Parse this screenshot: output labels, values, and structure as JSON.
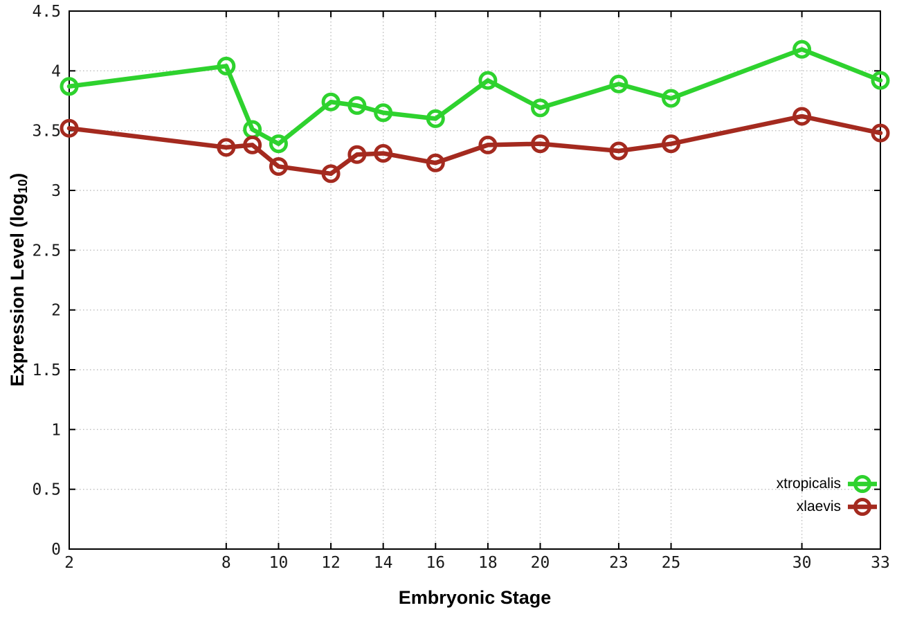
{
  "chart_data": {
    "type": "line",
    "xlabel": "Embryonic Stage",
    "ylabel": "Expression Level (log10)",
    "ylabel_parts": {
      "pre": "Expression Level (log",
      "sub": "10",
      "post": ")"
    },
    "x": [
      2,
      8,
      9,
      10,
      12,
      13,
      14,
      16,
      18,
      20,
      23,
      25,
      30,
      33
    ],
    "series": [
      {
        "name": "xtropicalis",
        "color": "#2ed22e",
        "values": [
          3.87,
          4.04,
          3.51,
          3.39,
          3.74,
          3.71,
          3.65,
          3.6,
          3.92,
          3.69,
          3.89,
          3.77,
          4.18,
          3.92
        ]
      },
      {
        "name": "xlaevis",
        "color": "#a42a1f",
        "values": [
          3.52,
          3.36,
          3.38,
          3.2,
          3.14,
          3.3,
          3.31,
          3.23,
          3.38,
          3.39,
          3.33,
          3.39,
          3.62,
          3.48
        ]
      }
    ],
    "xlim": [
      2,
      33
    ],
    "ylim": [
      0,
      4.5
    ],
    "x_ticks": [
      2,
      8,
      10,
      12,
      14,
      16,
      18,
      20,
      23,
      25,
      30,
      33
    ],
    "x_tick_labels": [
      "2",
      "8",
      "10",
      "12",
      "14",
      "16",
      "18",
      "20",
      "23",
      "25",
      "30",
      "33"
    ],
    "y_ticks": [
      0,
      0.5,
      1,
      1.5,
      2,
      2.5,
      3,
      3.5,
      4,
      4.5
    ],
    "y_tick_labels": [
      "0",
      "0.5",
      "1",
      "1.5",
      "2",
      "2.5",
      "3",
      "3.5",
      "4",
      "4.5"
    ],
    "grid": true,
    "grid_style": "dotted",
    "legend_position": "bottom-right-inside",
    "marker": "open-circle",
    "background_color": "#ffffff",
    "grid_color": "#bdbdbd",
    "axis_color": "#000000"
  }
}
